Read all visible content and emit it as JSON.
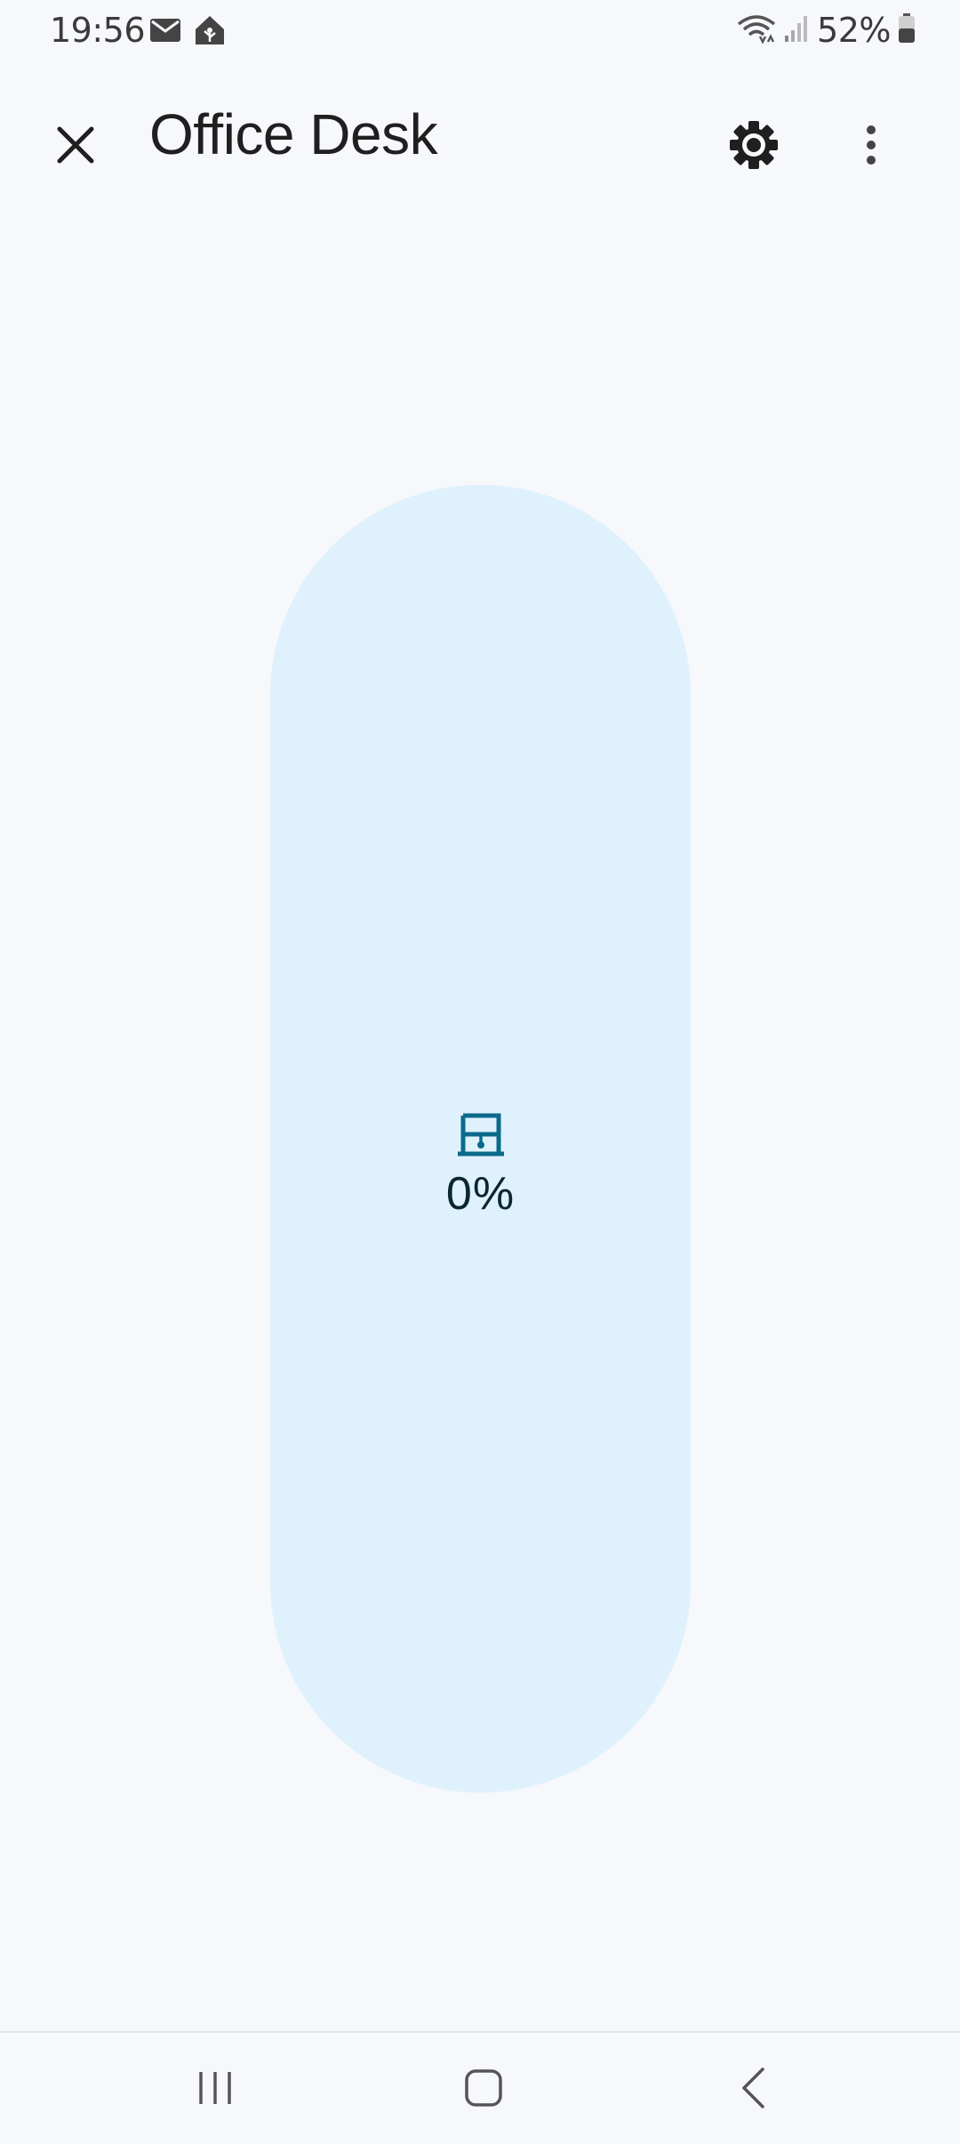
{
  "status_bar": {
    "time": "19:56",
    "battery": "52%",
    "icons": [
      "mail-icon",
      "home-assistant-icon",
      "wifi-icon",
      "signal-icon",
      "battery-icon"
    ]
  },
  "header": {
    "title": "Office Desk",
    "close_icon": "close-icon",
    "settings_icon": "gear-icon",
    "more_icon": "more-vert-icon"
  },
  "cover_control": {
    "value": "0%",
    "position_fraction": 0,
    "icon": "window-shade-icon",
    "track_color": "#dff1fd",
    "accent_color": "#0b6a8a"
  },
  "nav_bar": {
    "buttons": [
      "recent-apps-icon",
      "home-icon",
      "back-icon"
    ]
  }
}
